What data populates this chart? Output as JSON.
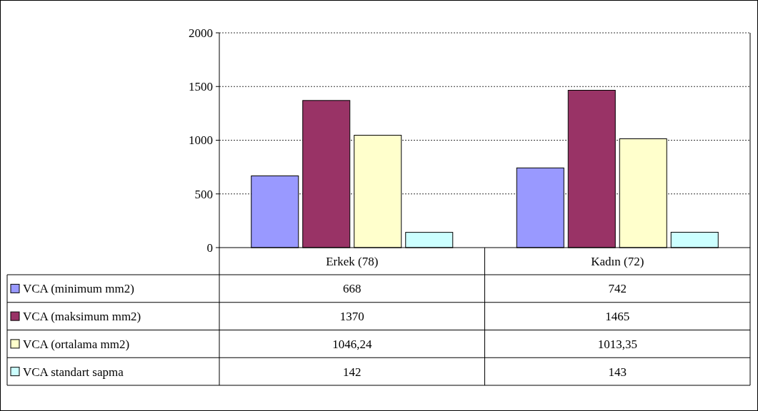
{
  "chart_data": {
    "type": "bar",
    "categories": [
      "Erkek (78)",
      "Kadın (72)"
    ],
    "series": [
      {
        "name": "VCA (minimum mm2)",
        "color": "#9999ff",
        "values": [
          668,
          742
        ],
        "value_labels": [
          "668",
          "742"
        ]
      },
      {
        "name": "VCA (maksimum mm2)",
        "color": "#993366",
        "values": [
          1370,
          1465
        ],
        "value_labels": [
          "1370",
          "1465"
        ]
      },
      {
        "name": "VCA (ortalama mm2)",
        "color": "#ffffcc",
        "values": [
          1046.24,
          1013.35
        ],
        "value_labels": [
          "1046,24",
          "1013,35"
        ]
      },
      {
        "name": "VCA standart sapma",
        "color": "#ccffff",
        "values": [
          142,
          143
        ],
        "value_labels": [
          "142",
          "143"
        ]
      }
    ],
    "ylim": [
      0,
      2000
    ],
    "yticks": [
      0,
      500,
      1000,
      1500,
      2000
    ],
    "grid": "y",
    "legend": "bottom left"
  }
}
